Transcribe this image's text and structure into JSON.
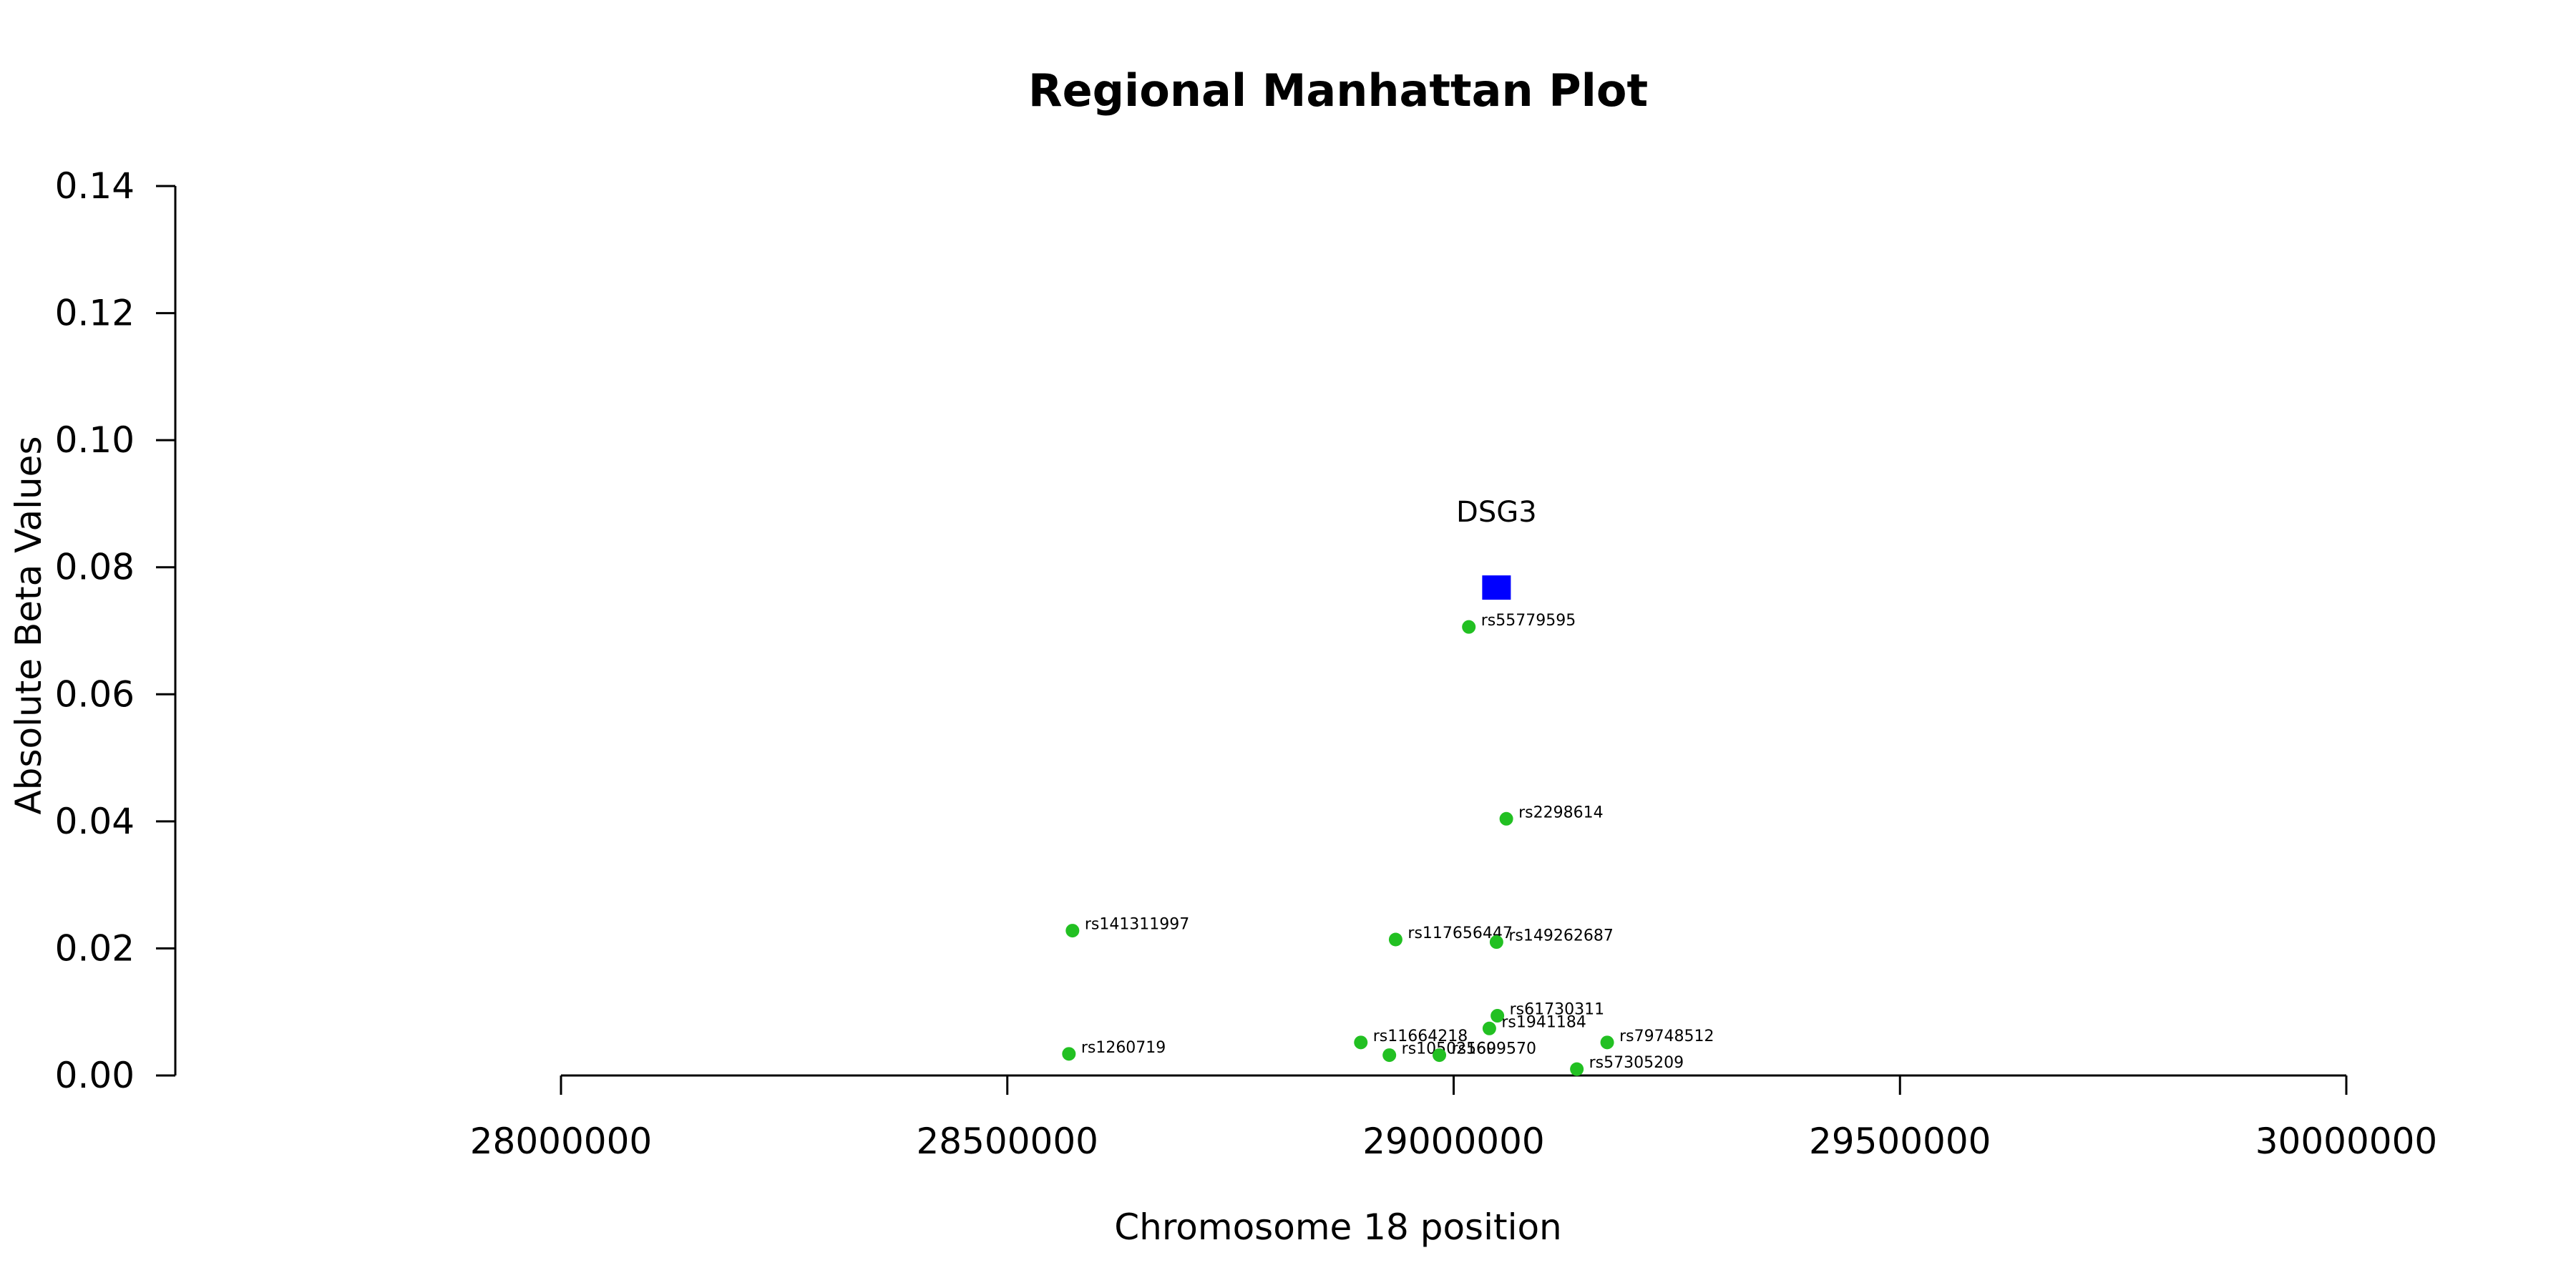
{
  "chart_data": {
    "type": "scatter",
    "title": "Regional Manhattan Plot",
    "xlabel": "Chromosome 18 position",
    "ylabel": "Absolute Beta Values",
    "xlim": [
      28000000,
      30000000
    ],
    "ylim": [
      0,
      0.14
    ],
    "xticks": [
      "28000000",
      "28500000",
      "29000000",
      "29500000",
      "30000000"
    ],
    "yticks": [
      "0.00",
      "0.02",
      "0.04",
      "0.06",
      "0.08",
      "0.10",
      "0.12",
      "0.14"
    ],
    "grid": false,
    "snp_color": "#22c022",
    "gene_color": "#0000ff",
    "gene": {
      "name": "DSG3",
      "x": 29048000,
      "y": 0.0768
    },
    "points": [
      {
        "label": "rs55779595",
        "x": 29017000,
        "y": 0.0706
      },
      {
        "label": "rs2298614",
        "x": 29059000,
        "y": 0.0404
      },
      {
        "label": "rs141311997",
        "x": 28573000,
        "y": 0.0228
      },
      {
        "label": "rs117656447",
        "x": 28935000,
        "y": 0.0214
      },
      {
        "label": "rs149262687",
        "x": 29048000,
        "y": 0.021
      },
      {
        "label": "rs61730311",
        "x": 29049000,
        "y": 0.0094
      },
      {
        "label": "rs1941184",
        "x": 29040000,
        "y": 0.0074
      },
      {
        "label": "rs79748512",
        "x": 29172000,
        "y": 0.0052
      },
      {
        "label": "rs11664218",
        "x": 28896000,
        "y": 0.0052
      },
      {
        "label": "rs1260719",
        "x": 28569000,
        "y": 0.0034
      },
      {
        "label": "rs10502569",
        "x": 28928000,
        "y": 0.0032
      },
      {
        "label": "rs1609570",
        "x": 28984000,
        "y": 0.0032
      },
      {
        "label": "rs57305209",
        "x": 29138000,
        "y": 0.001
      }
    ]
  }
}
